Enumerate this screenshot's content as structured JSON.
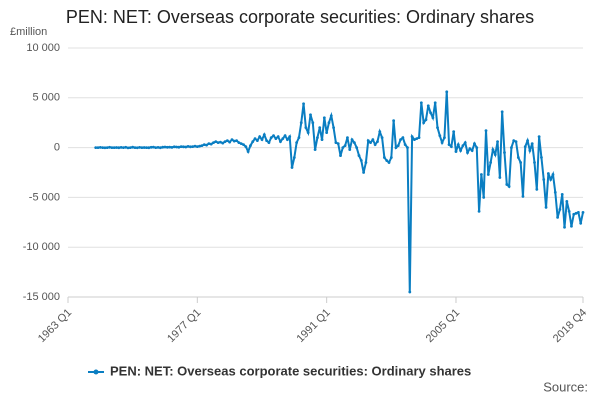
{
  "chart_data": {
    "type": "line",
    "title": "PEN: NET: Overseas corporate securities: Ordinary shares",
    "y_label": "£million",
    "source": "Source:",
    "categories": [
      "1963 Q1",
      null,
      null,
      null,
      null,
      null,
      null,
      null,
      null,
      null,
      null,
      null,
      null,
      null,
      null,
      null,
      null,
      null,
      null,
      null,
      null,
      null,
      null,
      null,
      null,
      null,
      null,
      null,
      null,
      null,
      null,
      null,
      null,
      null,
      null,
      null,
      null,
      null,
      null,
      null,
      null,
      null,
      null,
      null,
      null,
      null,
      null,
      null,
      null,
      null,
      null,
      null,
      null,
      null,
      null,
      null,
      "1977 Q1",
      null,
      null,
      null,
      null,
      null,
      null,
      null,
      null,
      null,
      null,
      null,
      null,
      null,
      null,
      null,
      null,
      null,
      null,
      null,
      null,
      null,
      null,
      null,
      null,
      null,
      null,
      null,
      null,
      null,
      null,
      null,
      null,
      null,
      null,
      null,
      null,
      null,
      null,
      null,
      null,
      null,
      null,
      null,
      null,
      null,
      null,
      null,
      null,
      null,
      null,
      null,
      null,
      null,
      null,
      null,
      "1991 Q1",
      null,
      null,
      null,
      null,
      null,
      null,
      null,
      null,
      null,
      null,
      null,
      null,
      null,
      null,
      null,
      null,
      null,
      null,
      null,
      null,
      null,
      null,
      null,
      null,
      null,
      null,
      null,
      null,
      null,
      null,
      null,
      null,
      null,
      null,
      null,
      null,
      null,
      null,
      null,
      null,
      null,
      null,
      null,
      null,
      null,
      null,
      null,
      null,
      null,
      null,
      null,
      null,
      null,
      null,
      null,
      "2005 Q1",
      null,
      null,
      null,
      null,
      null,
      null,
      null,
      null,
      null,
      null,
      null,
      null,
      null,
      null,
      null,
      null,
      null,
      null,
      null,
      null,
      null,
      null,
      null,
      null,
      null,
      null,
      null,
      null,
      null,
      null,
      null,
      null,
      null,
      null,
      null,
      null,
      null,
      null,
      null,
      null,
      null,
      null,
      null,
      null,
      null,
      null,
      null,
      null,
      null,
      null,
      null,
      null,
      null,
      null,
      "2018 Q4"
    ],
    "series": [
      {
        "name": "PEN: NET: Overseas corporate securities: Ordinary shares",
        "color": "#0a7ec2",
        "values": [
          null,
          null,
          null,
          null,
          null,
          null,
          null,
          null,
          null,
          null,
          null,
          null,
          0,
          0,
          20,
          0,
          -20,
          0,
          30,
          0,
          0,
          10,
          -10,
          20,
          0,
          30,
          -30,
          0,
          40,
          0,
          -20,
          20,
          0,
          10,
          0,
          -10,
          30,
          50,
          0,
          20,
          -10,
          40,
          60,
          30,
          50,
          20,
          80,
          60,
          40,
          100,
          80,
          60,
          120,
          80,
          100,
          150,
          100,
          150,
          200,
          300,
          250,
          400,
          350,
          500,
          600,
          500,
          550,
          450,
          600,
          700,
          550,
          800,
          650,
          700,
          500,
          400,
          300,
          100,
          -400,
          200,
          600,
          900,
          700,
          1100,
          800,
          1300,
          700,
          500,
          1000,
          1200,
          900,
          1100,
          600,
          900,
          1200,
          800,
          1100,
          -2000,
          -1000,
          500,
          1000,
          2500,
          4400,
          2000,
          1500,
          3300,
          2500,
          -200,
          1000,
          2000,
          800,
          3000,
          1500,
          2500,
          3200,
          2000,
          500,
          400,
          -800,
          0,
          200,
          1000,
          -200,
          800,
          500,
          0,
          -800,
          -1300,
          -2500,
          -1500,
          700,
          500,
          800,
          300,
          600,
          1600,
          1000,
          -1000,
          -1300,
          -1500,
          -1000,
          2700,
          0,
          200,
          800,
          1000,
          300,
          0,
          -14500,
          1100,
          800,
          900,
          1000,
          4500,
          2500,
          2800,
          4200,
          3500,
          3000,
          4500,
          2000,
          1200,
          500,
          1000,
          5600,
          300,
          100,
          1600,
          -400,
          300,
          -300,
          200,
          500,
          -500,
          -100,
          -300,
          400,
          0,
          -6400,
          -2700,
          -5000,
          1700,
          -2700,
          -1500,
          -200,
          -700,
          600,
          -3000,
          3600,
          -500,
          -3700,
          -3900,
          0,
          700,
          600,
          -1000,
          -1500,
          -4900,
          100,
          700,
          -300,
          400,
          -1500,
          -4200,
          1100,
          -1000,
          -3200,
          -6000,
          -2600,
          -3200,
          -2700,
          -4500,
          -7000,
          -6200,
          -4700,
          -8000,
          -5400,
          -6400,
          -7900,
          -6700,
          -6600,
          -6500,
          -7600,
          -6500
        ]
      }
    ],
    "ylim": [
      -15000,
      10000
    ],
    "yticks": [
      {
        "value": 10000,
        "label": "10 000"
      },
      {
        "value": 5000,
        "label": "5 000"
      },
      0,
      {
        "value": -5000,
        "label": "-5 000"
      },
      {
        "value": -10000,
        "label": "-10 000"
      },
      {
        "value": -15000,
        "label": "-15 000"
      }
    ],
    "grid": true
  }
}
